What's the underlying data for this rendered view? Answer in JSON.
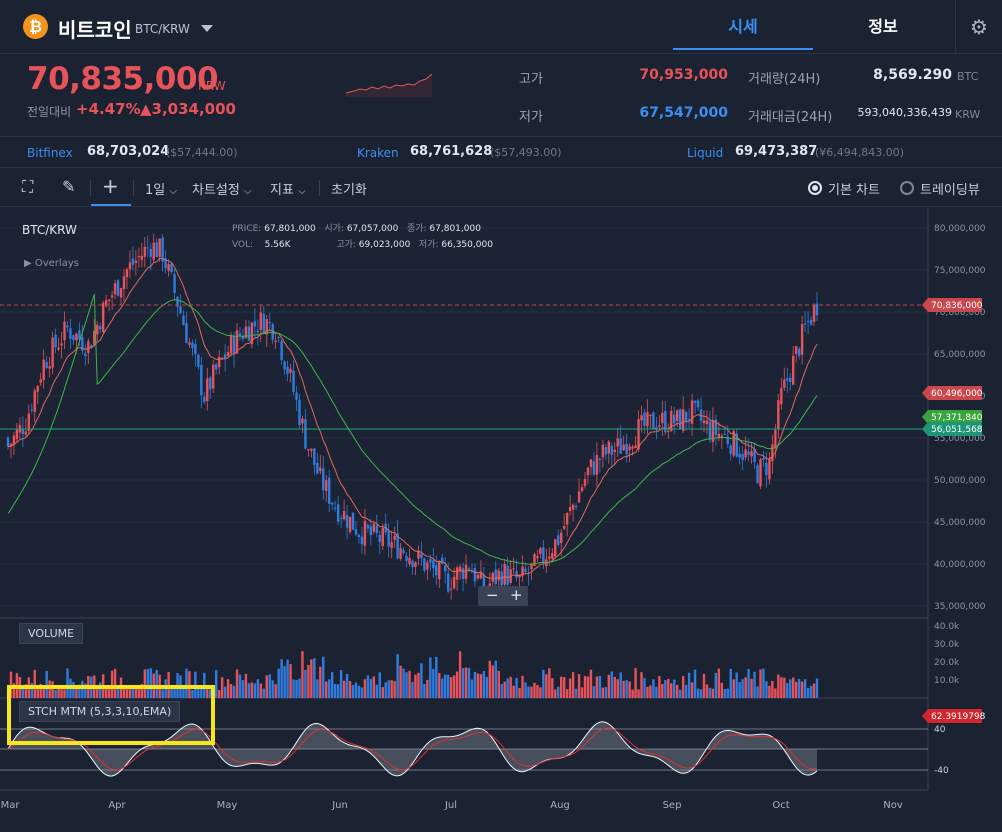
{
  "header": {
    "coin_icon": "bitcoin-icon",
    "coin_icon_glyph": "₿",
    "coin_name": "비트코인",
    "pair": "BTC/KRW",
    "tab_price": "시세",
    "tab_info": "정보",
    "settings_glyph": "⚙"
  },
  "summary": {
    "price": "70,835,000",
    "price_unit": "KRW",
    "change_label": "전일대비",
    "change_pct": "+4.47%",
    "change_value": "▲3,034,000",
    "high_label": "고가",
    "high_value": "70,953,000",
    "low_label": "저가",
    "low_value": "67,547,000",
    "volume_label": "거래량(24H)",
    "volume_value": "8,569.290",
    "volume_unit": "BTC",
    "amount_label": "거래대금(24H)",
    "amount_value": "593,040,336,439",
    "amount_unit": "KRW"
  },
  "exchanges": [
    {
      "name": "Bitfinex",
      "price": "68,703,024",
      "usd": "($57,444.00)"
    },
    {
      "name": "Kraken",
      "price": "68,761,628",
      "usd": "($57,493.00)"
    },
    {
      "name": "Liquid",
      "price": "69,473,387",
      "usd": "(¥6,494,843.00)"
    }
  ],
  "toolbar": {
    "fullscreen_glyph": "⛶",
    "draw_glyph": "✎",
    "crosshair_glyph": "+",
    "interval": "1일",
    "chart_settings": "차트설정",
    "indicators": "지표",
    "reset": "초기화",
    "basic_chart": "기본 차트",
    "trading_view": "트레이딩뷰",
    "caret": "⌵"
  },
  "chart": {
    "symbol": "BTC/KRW",
    "overlays": "▶  Overlays",
    "ohlc": {
      "price_label": "PRICE:",
      "price": "67,801,000",
      "vol_label": "VOL:",
      "vol": "5.56K",
      "open_label": "시가:",
      "open": "67,057,000",
      "high_label": "고가:",
      "high": "69,023,000",
      "close_label": "종가:",
      "close": "67,801,000",
      "low_label": "저가:",
      "low": "66,350,000"
    },
    "volume_btn": "VOLUME",
    "stoch_btn": "STCH MTM (5,3,3,10,EMA)",
    "zoom_minus": "−",
    "zoom_plus": "+",
    "price_axis": [
      "80,000,000",
      "75,000,000",
      "70,000,000",
      "65,000,000",
      "60,000,000",
      "55,000,000",
      "50,000,000",
      "45,000,000",
      "40,000,000",
      "35,000,000"
    ],
    "volume_axis": [
      "40.0k",
      "30.0k",
      "20.0k",
      "10.0k"
    ],
    "stoch_axis": [
      "40",
      "-40"
    ],
    "tags": {
      "last_price": "70,836,000",
      "ma_short": "60,496,000",
      "ma_long": "57,371,840",
      "hline": "56,051,568",
      "stoch_value": "62.3919798"
    },
    "months": [
      "Mar",
      "Apr",
      "May",
      "Jun",
      "Jul",
      "Aug",
      "Sep",
      "Oct",
      "Nov"
    ]
  },
  "colors": {
    "up": "#e8535b",
    "down": "#2f7de1",
    "accent": "#3c8ef0",
    "ma_short": "#e06a5c",
    "ma_long": "#3fb54a",
    "hline": "#1fa37a",
    "highlight": "#f5e61e"
  }
}
